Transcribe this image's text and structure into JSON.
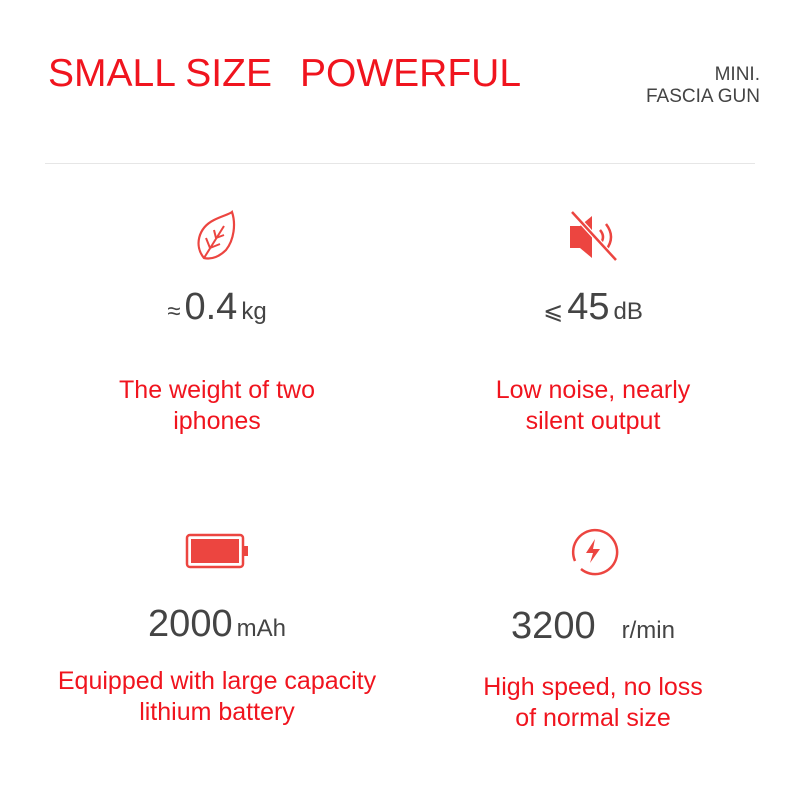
{
  "header": {
    "title_left": "SMALL SIZE",
    "title_right": "POWERFUL",
    "tag_line1": "MINI.",
    "tag_line2": "FASCIA GUN"
  },
  "accent": "#f0141e",
  "features": [
    {
      "icon": "leaf-icon",
      "prefix": "≈",
      "value": "0.4",
      "unit": "kg",
      "desc1": "The weight of two",
      "desc2": "iphones"
    },
    {
      "icon": "mute-speaker-icon",
      "prefix": "⩽",
      "value": "45",
      "unit": "dB",
      "desc1": "Low noise, nearly",
      "desc2": "silent output"
    },
    {
      "icon": "battery-icon",
      "prefix": "",
      "value": "2000",
      "unit": "mAh",
      "desc1": "Equipped with large capacity",
      "desc2": "lithium battery"
    },
    {
      "icon": "lightning-circle-icon",
      "prefix": "",
      "value": "3200",
      "unit": "r/min",
      "desc1": "High speed, no loss",
      "desc2": "of normal size"
    }
  ]
}
